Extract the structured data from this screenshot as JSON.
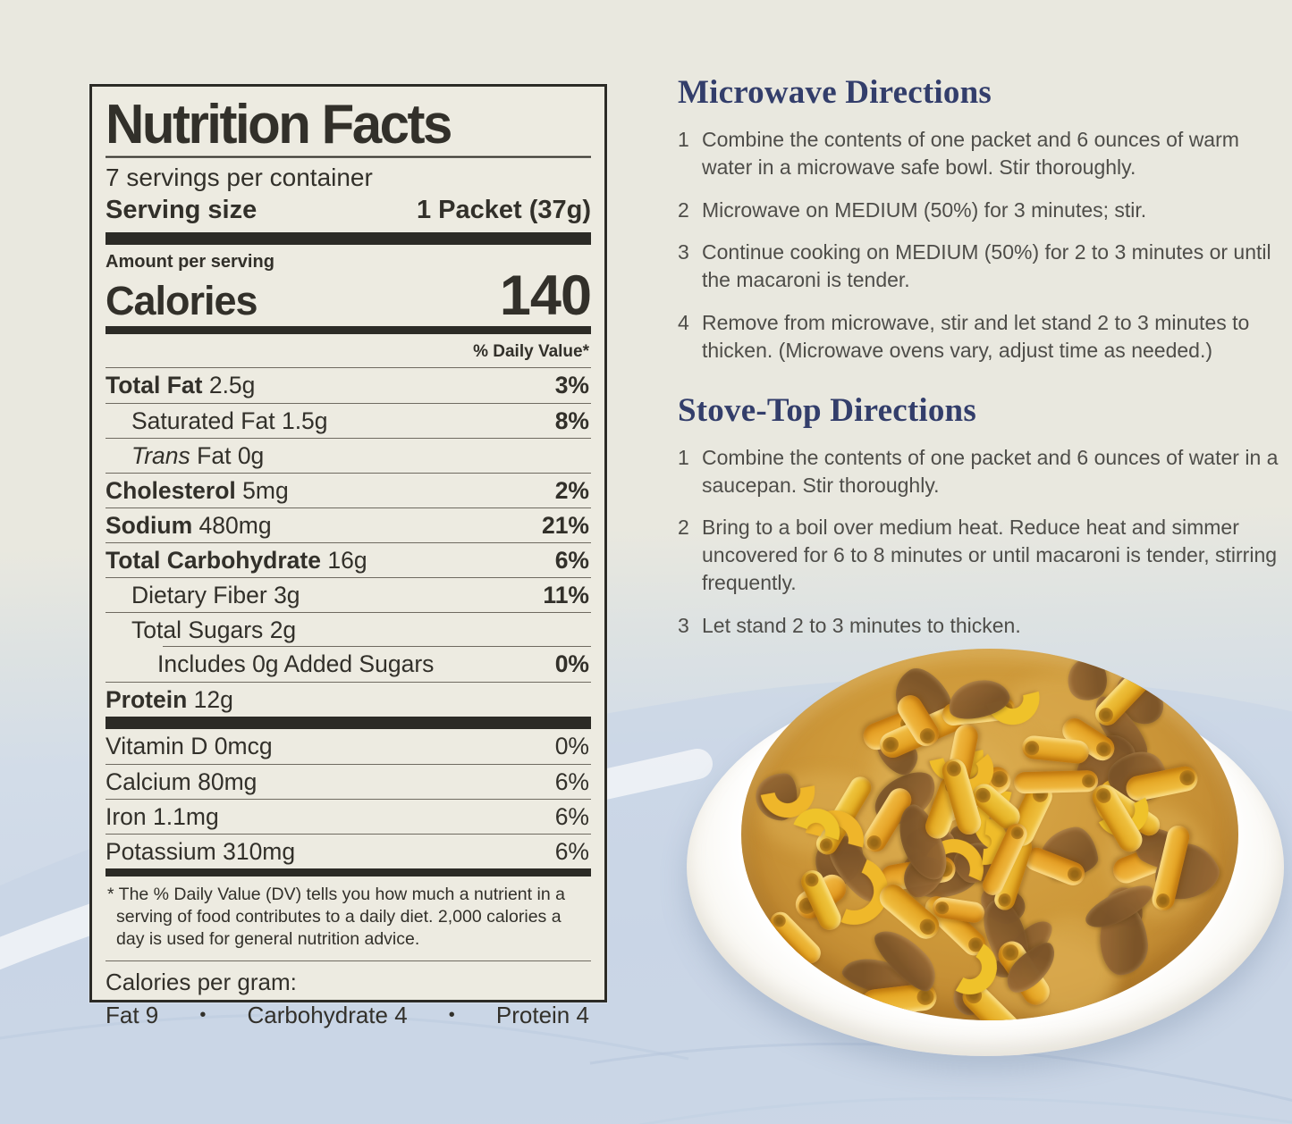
{
  "colors": {
    "background_top": "#e9e8df",
    "background_bottom": "#cdd8e7",
    "label_background": "#edebe1",
    "label_border": "#2c2b26",
    "label_text": "#32302a",
    "heading_navy": "#333e6b",
    "body_text": "#4e4d49",
    "pasta_yellow": "#f2bb35",
    "sauce_orange": "#cd9839",
    "meat_brown": "#8e6434",
    "plate_white": "#ffffff"
  },
  "nutrition_label": {
    "title": "Nutrition Facts",
    "servings_per_container": "7 servings per container",
    "serving_size_label": "Serving size",
    "serving_size_value": "1 Packet (37g)",
    "amount_per_serving_label": "Amount per serving",
    "calories_label": "Calories",
    "calories_value": "140",
    "daily_value_header": "% Daily Value*",
    "main_rows": [
      {
        "name": "Total Fat",
        "amount": "2.5g",
        "dv": "3%",
        "bold": true,
        "indent": 0
      },
      {
        "name": "Saturated Fat",
        "amount": "1.5g",
        "dv": "8%",
        "bold": false,
        "indent": 1
      },
      {
        "italic": "Trans ",
        "name": "Fat",
        "amount": "0g",
        "dv": "",
        "bold": false,
        "indent": 1
      },
      {
        "name": "Cholesterol",
        "amount": "5mg",
        "dv": "2%",
        "bold": true,
        "indent": 0
      },
      {
        "name": "Sodium",
        "amount": "480mg",
        "dv": "21%",
        "bold": true,
        "indent": 0
      },
      {
        "name": "Total Carbohydrate",
        "amount": "16g",
        "dv": "6%",
        "bold": true,
        "indent": 0
      },
      {
        "name": "Dietary Fiber",
        "amount": "3g",
        "dv": "11%",
        "bold": false,
        "indent": 1
      },
      {
        "name": "Total Sugars",
        "amount": "2g",
        "dv": "",
        "bold": false,
        "indent": 1
      },
      {
        "name": "Includes 0g Added Sugars",
        "amount": "",
        "dv": "0%",
        "bold": false,
        "indent": 2,
        "inset_rule": true
      },
      {
        "name": "Protein",
        "amount": "12g",
        "dv": "",
        "bold": true,
        "indent": 0
      }
    ],
    "vitamin_rows": [
      {
        "name": "Vitamin D",
        "amount": "0mcg",
        "dv": "0%"
      },
      {
        "name": "Calcium",
        "amount": "80mg",
        "dv": "6%"
      },
      {
        "name": "Iron",
        "amount": "1.1mg",
        "dv": "6%"
      },
      {
        "name": "Potassium",
        "amount": "310mg",
        "dv": "6%"
      }
    ],
    "footnote": "* The % Daily Value (DV) tells you how much a nutrient in a serving of food contributes to a daily diet. 2,000 calories a day is used for general nutrition advice.",
    "calories_per_gram": {
      "label": "Calories per gram:",
      "fat": "Fat 9",
      "carbohydrate": "Carbohydrate 4",
      "protein": "Protein 4",
      "bullet": "•"
    }
  },
  "directions": {
    "microwave": {
      "title": "Microwave Directions",
      "steps": [
        {
          "num": "1",
          "text": "Combine the contents of one packet and 6 ounces of warm water in a microwave safe bowl. Stir thoroughly."
        },
        {
          "num": "2",
          "text": "Microwave on MEDIUM (50%) for 3 minutes; stir."
        },
        {
          "num": "3",
          "text": "Continue cooking on MEDIUM (50%) for 2 to 3 minutes or until the macaroni is tender."
        },
        {
          "num": "4",
          "text": "Remove from microwave, stir and let stand 2 to 3 minutes to thicken. (Microwave ovens vary, adjust time as needed.)"
        }
      ]
    },
    "stovetop": {
      "title": "Stove-Top Directions",
      "steps": [
        {
          "num": "1",
          "text": "Combine the contents of one packet and 6 ounces of water in a saucepan. Stir thoroughly."
        },
        {
          "num": "2",
          "text": "Bring to a boil over medium heat. Reduce heat and simmer uncovered for 6 to 8 minutes or until macaroni is tender, stirring frequently."
        },
        {
          "num": "3",
          "text": "Let stand 2 to 3 minutes to thicken."
        }
      ]
    }
  },
  "food_photo": {
    "description": "White plate heaped with elbow macaroni and ground beef in cheese sauce"
  }
}
